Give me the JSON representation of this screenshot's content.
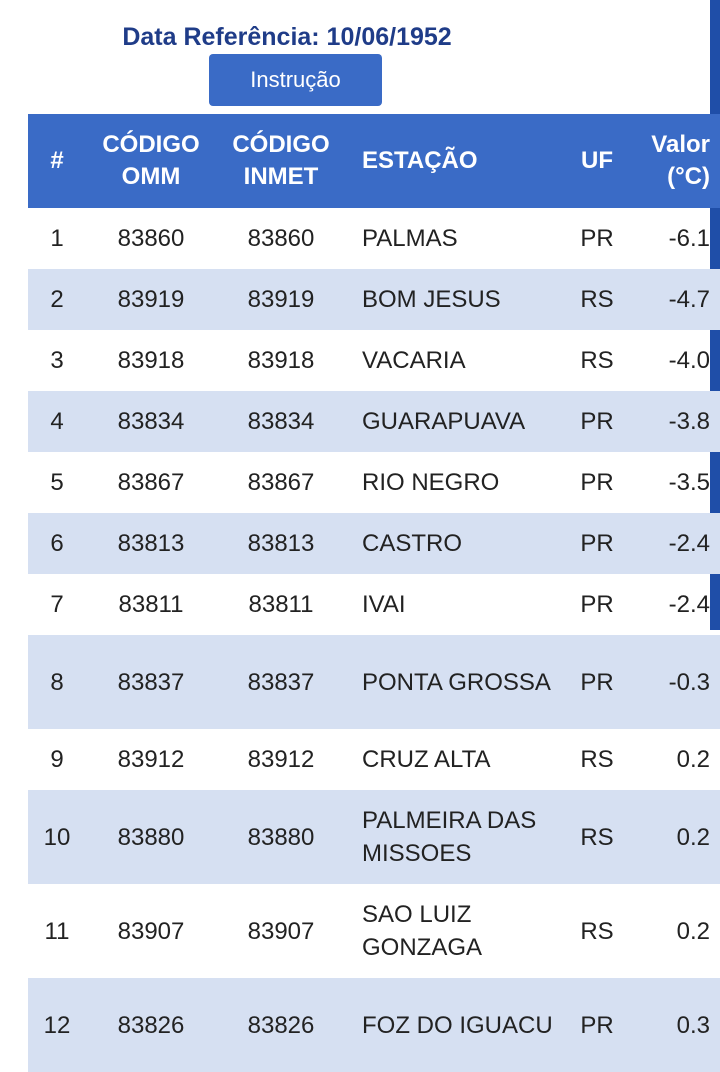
{
  "header": {
    "reference_date": "Data Referência: 10/06/1952",
    "instruction_label": "Instrução"
  },
  "table": {
    "columns": {
      "num": "#",
      "omm": "CÓDIGO OMM",
      "inmet": "CÓDIGO INMET",
      "station": "ESTAÇÃO",
      "uf": "UF",
      "value": "Valor (°C)"
    },
    "rows": [
      {
        "num": "1",
        "omm": "83860",
        "inmet": "83860",
        "station": "PALMAS",
        "uf": "PR",
        "value": "-6.1"
      },
      {
        "num": "2",
        "omm": "83919",
        "inmet": "83919",
        "station": "BOM JESUS",
        "uf": "RS",
        "value": "-4.7"
      },
      {
        "num": "3",
        "omm": "83918",
        "inmet": "83918",
        "station": "VACARIA",
        "uf": "RS",
        "value": "-4.0"
      },
      {
        "num": "4",
        "omm": "83834",
        "inmet": "83834",
        "station": "GUARAPUAVA",
        "uf": "PR",
        "value": "-3.8"
      },
      {
        "num": "5",
        "omm": "83867",
        "inmet": "83867",
        "station": "RIO NEGRO",
        "uf": "PR",
        "value": "-3.5"
      },
      {
        "num": "6",
        "omm": "83813",
        "inmet": "83813",
        "station": "CASTRO",
        "uf": "PR",
        "value": "-2.4"
      },
      {
        "num": "7",
        "omm": "83811",
        "inmet": "83811",
        "station": "IVAI",
        "uf": "PR",
        "value": "-2.4"
      },
      {
        "num": "8",
        "omm": "83837",
        "inmet": "83837",
        "station": "PONTA GROSSA",
        "uf": "PR",
        "value": "-0.3"
      },
      {
        "num": "9",
        "omm": "83912",
        "inmet": "83912",
        "station": "CRUZ ALTA",
        "uf": "RS",
        "value": "0.2"
      },
      {
        "num": "10",
        "omm": "83880",
        "inmet": "83880",
        "station": "PALMEIRA DAS MISSOES",
        "uf": "RS",
        "value": "0.2"
      },
      {
        "num": "11",
        "omm": "83907",
        "inmet": "83907",
        "station": "SAO LUIZ GONZAGA",
        "uf": "RS",
        "value": "0.2"
      },
      {
        "num": "12",
        "omm": "83826",
        "inmet": "83826",
        "station": "FOZ DO IGUACU",
        "uf": "PR",
        "value": "0.3"
      }
    ]
  }
}
